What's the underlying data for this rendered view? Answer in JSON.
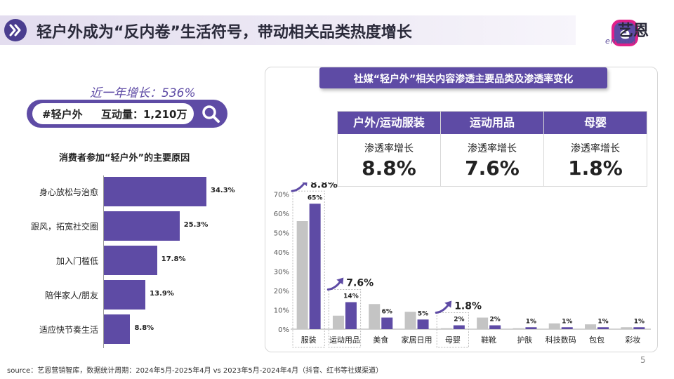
{
  "header": {
    "title": "轻户外成为“反内卷”生活符号，带动相关品类热度增长",
    "logo_text": "艺恩",
    "logo_sub": "endata"
  },
  "search": {
    "growth_label": "近一年增长：536%",
    "hashtag": "#轻户外",
    "interactions": "互动量：1,210万"
  },
  "reasons": {
    "title": "消费者参加“轻户外”的主要原因",
    "items": [
      {
        "label": "身心放松与治愈",
        "value": 34.3,
        "value_label": "34.3%"
      },
      {
        "label": "跟风，拓宽社交圈",
        "value": 25.3,
        "value_label": "25.3%"
      },
      {
        "label": "加入门槛低",
        "value": 17.8,
        "value_label": "17.8%"
      },
      {
        "label": "陪伴家人/朋友",
        "value": 13.9,
        "value_label": "13.9%"
      },
      {
        "label": "适应快节奏生活",
        "value": 8.8,
        "value_label": "8.8%"
      }
    ]
  },
  "panel": {
    "title": "社媒“轻户外”相关内容渗透主要品类及渗透率变化",
    "cards": [
      {
        "category": "户外/运动服装",
        "metric": "渗透率增长",
        "value": "8.8%"
      },
      {
        "category": "运动用品",
        "metric": "渗透率增长",
        "value": "7.6%"
      },
      {
        "category": "母婴",
        "metric": "渗透率增长",
        "value": "1.8%"
      }
    ]
  },
  "colors": {
    "accent": "#5e4ba5",
    "gray_bar": "#c4c4c4",
    "header_icon": "#4a3d8f"
  },
  "chart_data": {
    "type": "bar",
    "categories": [
      "服装",
      "运动用品",
      "美食",
      "家居日用",
      "母婴",
      "鞋靴",
      "护肤",
      "科技数码",
      "包包",
      "彩妆"
    ],
    "series": [
      {
        "values": [
          56,
          7,
          13,
          9,
          0.5,
          6,
          0.5,
          3,
          2.5,
          1
        ]
      },
      {
        "values": [
          65,
          14,
          6,
          5,
          2,
          2,
          1,
          1,
          1,
          1
        ]
      }
    ],
    "value_labels": [
      "65%",
      "14%",
      "6%",
      "5%",
      "2%",
      "2%",
      "1%",
      "1%",
      "1%",
      "1%"
    ],
    "y_ticks": [
      "0%",
      "10%",
      "20%",
      "30%",
      "40%",
      "50%",
      "60%",
      "70%"
    ],
    "ylim": [
      0,
      70
    ],
    "highlighted_categories": [
      "服装",
      "运动用品",
      "母婴"
    ],
    "growth_annotations": [
      {
        "category": "服装",
        "text": "8.8%"
      },
      {
        "category": "运动用品",
        "text": "7.6%"
      },
      {
        "category": "母婴",
        "text": "1.8%"
      }
    ],
    "grid": false,
    "legend": "none"
  },
  "footer": {
    "source": "source：艺恩营销智库，数据统计周期：2024年5月-2025年4月 vs 2023年5月-2024年4月（抖音、红书等社媒渠道）",
    "page_number": "5"
  }
}
